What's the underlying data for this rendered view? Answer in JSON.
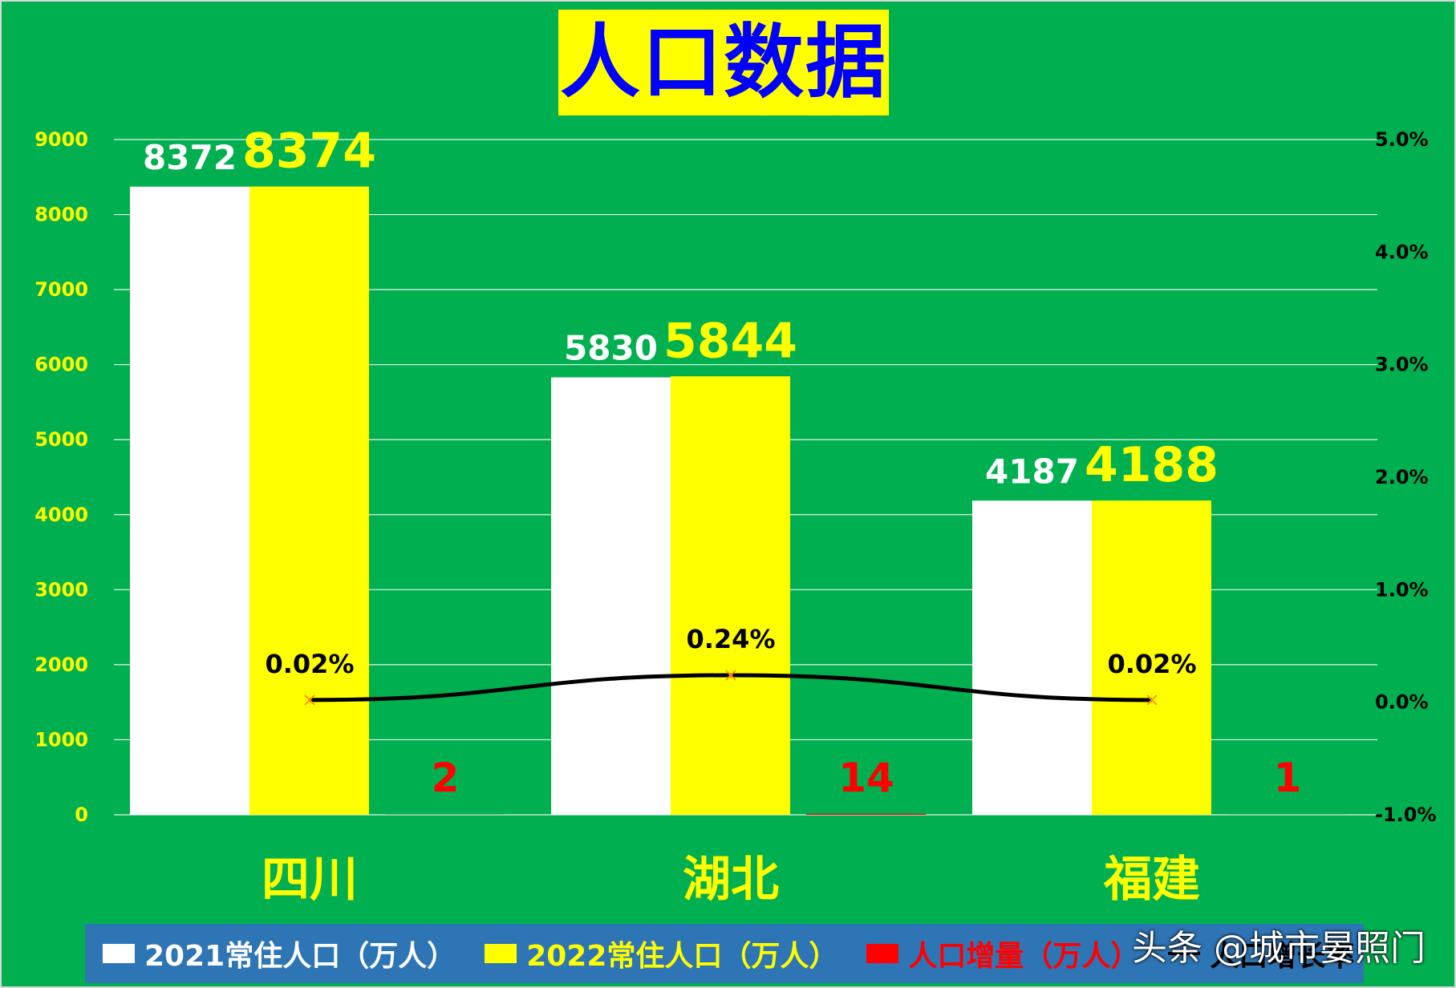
{
  "title": "人口数据",
  "chart_data": {
    "type": "bar",
    "categories": [
      "四川",
      "湖北",
      "福建"
    ],
    "series": [
      {
        "name": "2021常住人口（万人）",
        "values": [
          8372,
          5830,
          4187
        ],
        "color": "#ffffff"
      },
      {
        "name": "2022常住人口（万人）",
        "values": [
          8374,
          5844,
          4188
        ],
        "color": "#ffff00"
      },
      {
        "name": "人口增量（万人）",
        "values": [
          2,
          14,
          1
        ],
        "color": "#ff0000"
      },
      {
        "name": "人口增长率",
        "type": "line",
        "axis": "right",
        "values": [
          0.02,
          0.24,
          0.02
        ],
        "labels": [
          "0.02%",
          "0.24%",
          "0.02%"
        ],
        "color": "#000000"
      }
    ],
    "y_left": {
      "ylim": [
        0,
        9000
      ],
      "ticks": [
        "0",
        "1000",
        "2000",
        "3000",
        "4000",
        "5000",
        "6000",
        "7000",
        "8000",
        "9000"
      ]
    },
    "y_right": {
      "ylim": [
        -1.0,
        5.0
      ],
      "ticks": [
        "-1.0%",
        "0.0%",
        "1.0%",
        "2.0%",
        "3.0%",
        "4.0%",
        "5.0%"
      ]
    },
    "grid": true,
    "legend_position": "bottom"
  },
  "legend": {
    "items": [
      {
        "label": "2021常住人口（万人）",
        "color": "#ffffff"
      },
      {
        "label": "2022常住人口（万人）",
        "color": "#ffff00"
      },
      {
        "label": "人口增量（万人）",
        "color": "#ff0000"
      },
      {
        "label": "人口增长率",
        "color": "#000000"
      }
    ]
  },
  "watermark": "头条 @城市晏照门"
}
